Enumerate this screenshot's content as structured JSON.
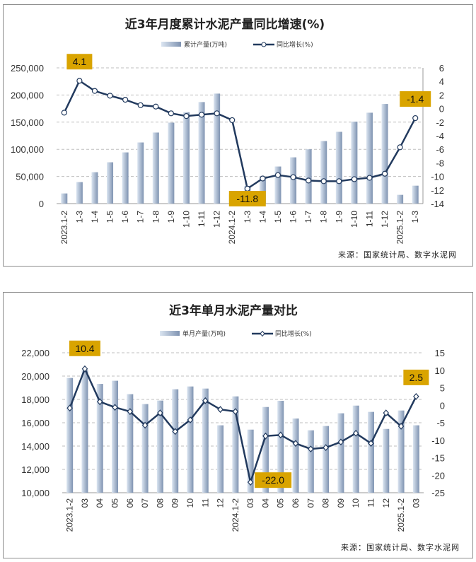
{
  "colors": {
    "bar_light": "#dbe5f1",
    "bar_dark": "#8196b4",
    "line": "#223a5e",
    "annotation": "#d9a400",
    "grid": "#bfbfbf"
  },
  "chart_data": [
    {
      "type": "bar+line",
      "title": "近3年月度累计水泥产量同比增速(%)",
      "source": "来源：国家统计局、数字水泥网",
      "categories": [
        "2023.1-2",
        "1-3",
        "1-4",
        "1-5",
        "1-6",
        "1-7",
        "1-8",
        "1-9",
        "1-10",
        "1-11",
        "1-12",
        "2024.1-2",
        "1-3",
        "1-4",
        "1-5",
        "1-6",
        "1-7",
        "1-8",
        "1-9",
        "1-10",
        "1-11",
        "1-12",
        "2025.1-2",
        "1-3"
      ],
      "y_left": {
        "range": [
          0,
          250000
        ],
        "ticks": [
          "0",
          "50,000",
          "100,000",
          "150,000",
          "200,000",
          "250,000"
        ],
        "tick_values": [
          0,
          50000,
          100000,
          150000,
          200000,
          250000
        ]
      },
      "y_right": {
        "range": [
          -14,
          6
        ],
        "ticks": [
          "-14",
          "-12",
          "-10",
          "-8",
          "-6",
          "-4",
          "-2",
          "0",
          "2",
          "4",
          "6"
        ],
        "tick_values": [
          -14,
          -12,
          -10,
          -8,
          -6,
          -4,
          -2,
          0,
          2,
          4,
          6
        ]
      },
      "grid": true,
      "legend_position": "top",
      "marker": "circle",
      "series": [
        {
          "name": "累计产量(万吨)",
          "type": "bar",
          "axis": "left",
          "values": [
            18700,
            39600,
            57800,
            76100,
            94300,
            112600,
            130900,
            149100,
            168300,
            187000,
            202600,
            17400,
            32600,
            49100,
            68300,
            85200,
            100000,
            115200,
            132200,
            150900,
            167400,
            183500,
            16100,
            33000
          ]
        },
        {
          "name": "同比增长(%)",
          "type": "line",
          "axis": "right",
          "values": [
            -0.6,
            4.1,
            2.6,
            1.9,
            1.3,
            0.5,
            0.3,
            -0.7,
            -1.1,
            -0.9,
            -0.7,
            -1.7,
            -11.8,
            -10.3,
            -9.8,
            -10.1,
            -10.6,
            -10.7,
            -10.7,
            -10.4,
            -10.2,
            -9.6,
            -5.7,
            -1.4
          ]
        }
      ],
      "annotations": [
        {
          "index": 1,
          "text": "4.1"
        },
        {
          "index": 12,
          "text": "-11.8"
        },
        {
          "index": 23,
          "text": "-1.4"
        }
      ]
    },
    {
      "type": "bar+line",
      "title": "近3年单月水泥产量对比",
      "source": "来源：国家统计局、数字水泥网",
      "categories": [
        "2023.1-2",
        "03",
        "04",
        "05",
        "06",
        "07",
        "08",
        "09",
        "10",
        "11",
        "12",
        "2024.1-2",
        "03",
        "04",
        "05",
        "06",
        "07",
        "08",
        "09",
        "10",
        "11",
        "12",
        "2025.1-2",
        "03"
      ],
      "y_left": {
        "range": [
          10000,
          22000
        ],
        "ticks": [
          "10,000",
          "12,000",
          "14,000",
          "16,000",
          "18,000",
          "20,000",
          "22,000"
        ],
        "tick_values": [
          10000,
          12000,
          14000,
          16000,
          18000,
          20000,
          22000
        ]
      },
      "y_right": {
        "range": [
          -25,
          15
        ],
        "ticks": [
          "-25",
          "-20",
          "-15",
          "-10",
          "-5",
          "0",
          "5",
          "10",
          "15"
        ],
        "tick_values": [
          -25,
          -20,
          -15,
          -10,
          -5,
          0,
          5,
          10,
          15
        ]
      },
      "grid": true,
      "legend_position": "top",
      "marker": "diamond",
      "series": [
        {
          "name": "单月产量(万吨)",
          "type": "bar",
          "axis": "left",
          "values": [
            19840,
            20500,
            19330,
            19600,
            18450,
            17600,
            17900,
            18870,
            19110,
            18930,
            15780,
            18260,
            15410,
            17350,
            17880,
            16360,
            15350,
            15720,
            16810,
            17470,
            16930,
            15470,
            17050,
            15780
          ]
        },
        {
          "name": "同比增长(%)",
          "type": "line",
          "axis": "right",
          "values": [
            -0.8,
            10.4,
            1.0,
            -0.6,
            -1.8,
            -5.7,
            -2.2,
            -7.5,
            -4.2,
            1.3,
            -1.2,
            -1.8,
            -22.0,
            -8.8,
            -8.5,
            -10.9,
            -12.5,
            -12.1,
            -10.5,
            -8.0,
            -10.9,
            -2.2,
            -6.0,
            2.5
          ]
        }
      ],
      "annotations": [
        {
          "index": 1,
          "text": "10.4"
        },
        {
          "index": 12,
          "text": "-22.0"
        },
        {
          "index": 23,
          "text": "2.5"
        }
      ]
    }
  ]
}
